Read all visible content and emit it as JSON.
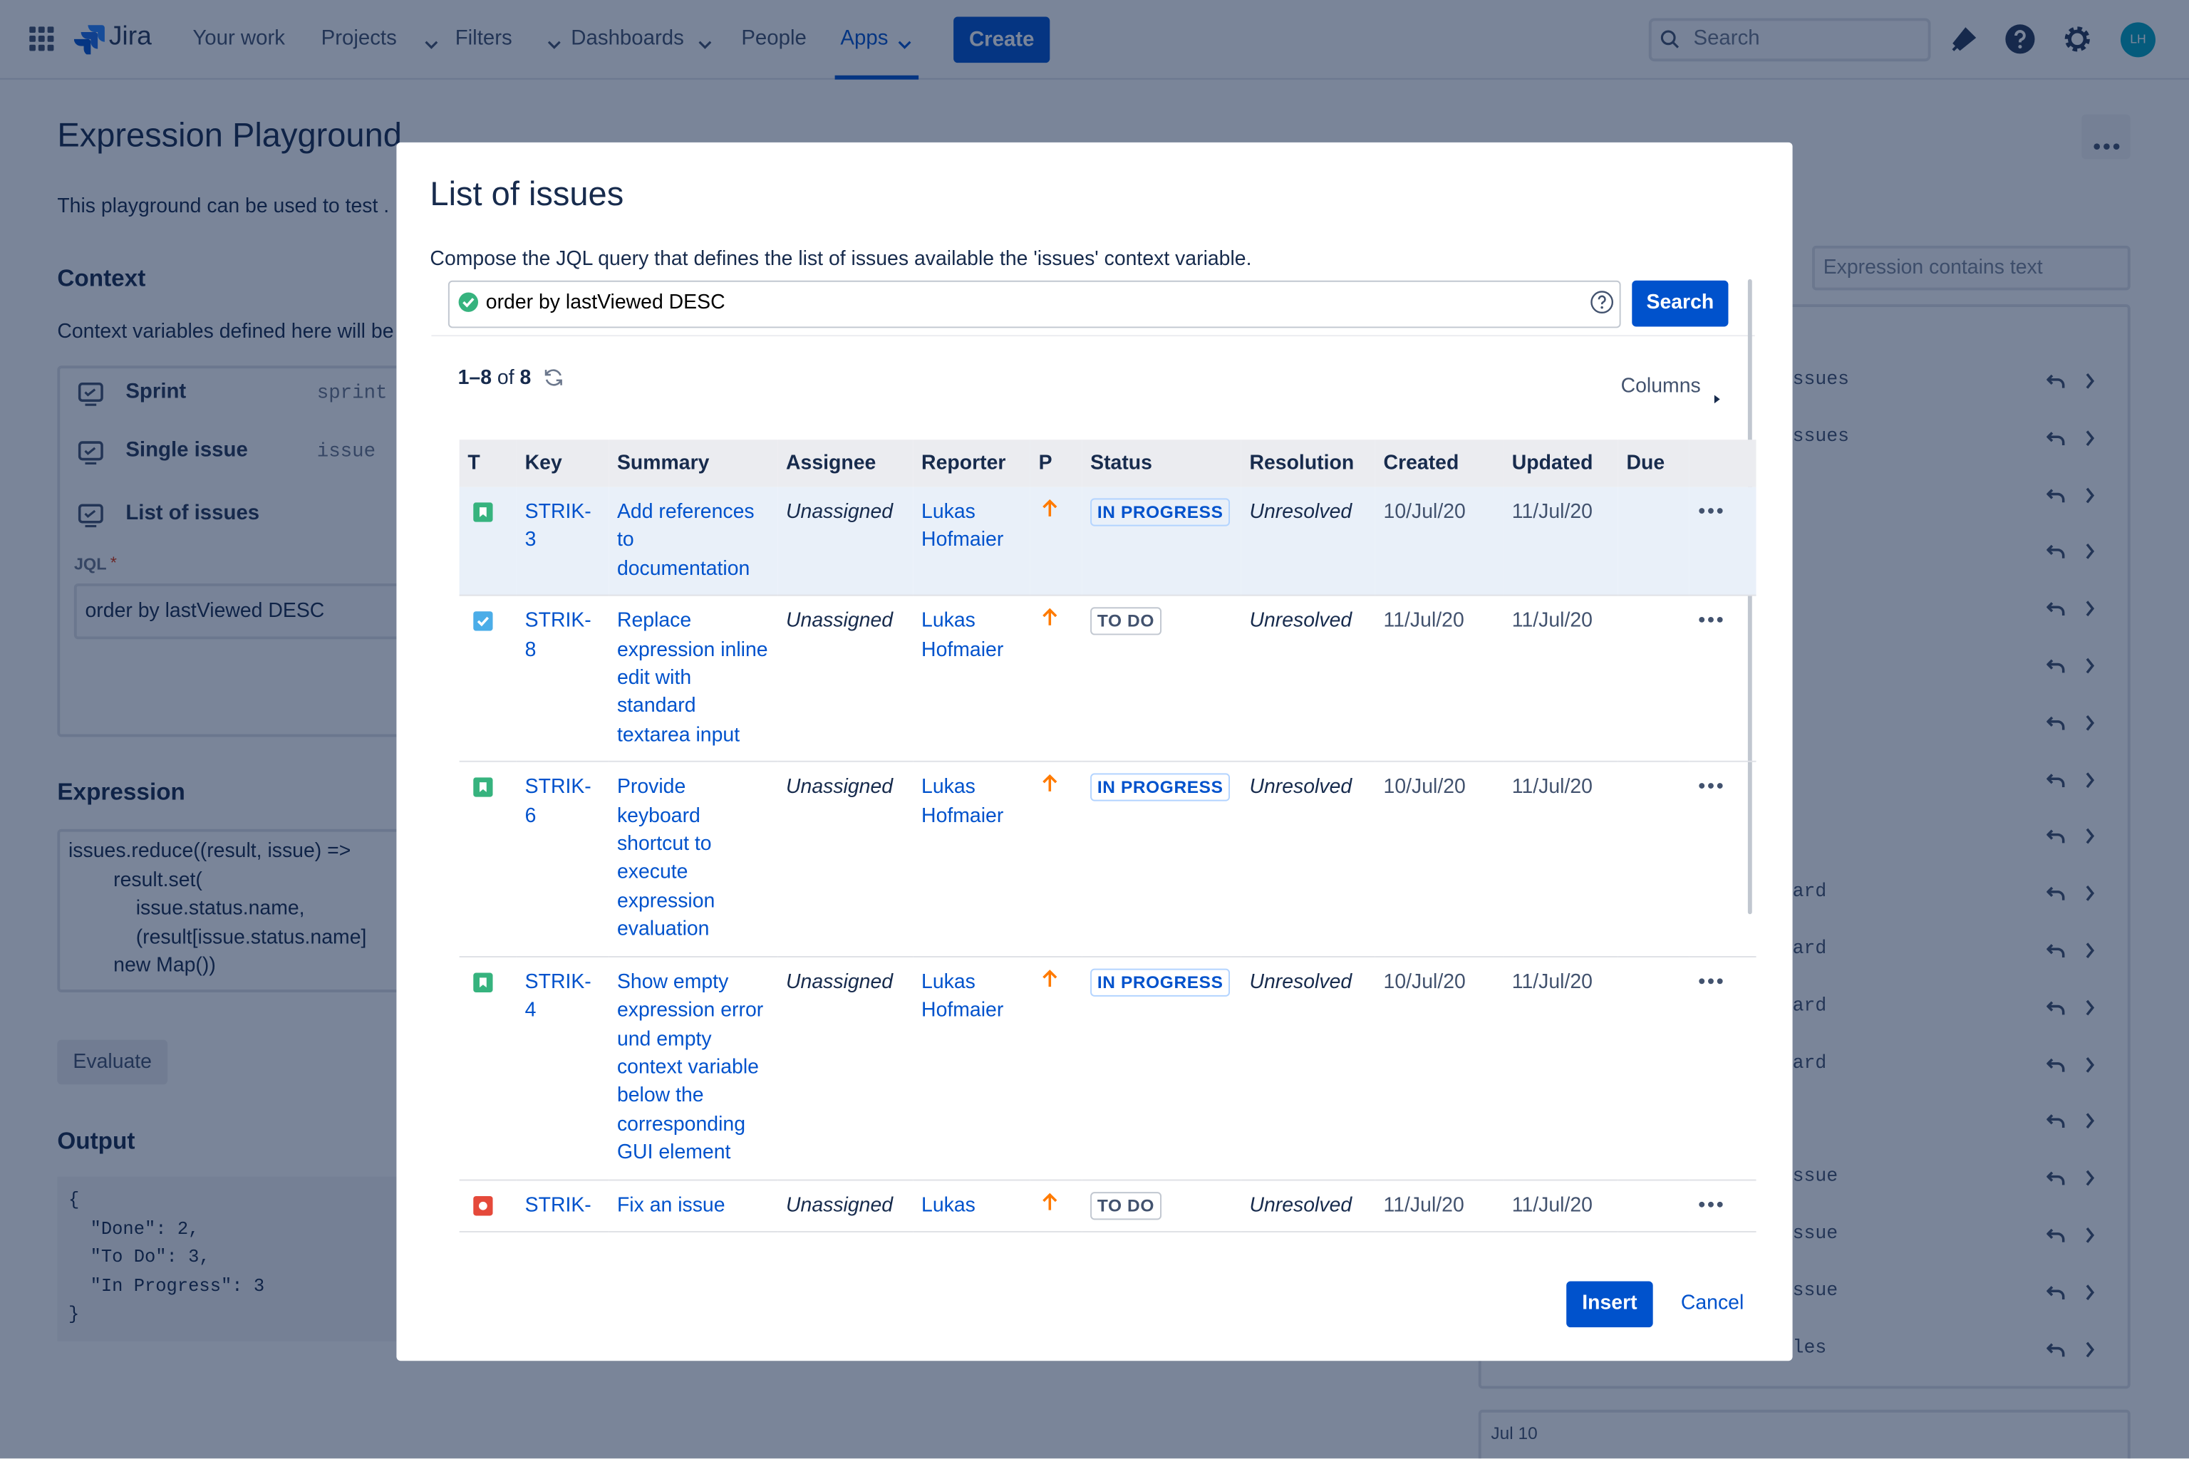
{
  "nav": {
    "product": "Jira",
    "links": [
      "Your work",
      "Projects",
      "Filters",
      "Dashboards",
      "People",
      "Apps"
    ],
    "create": "Create",
    "search": "Search",
    "avatar": "LH"
  },
  "page": {
    "title": "Expression Playground",
    "intro": "This playground can be used to test .",
    "context": {
      "heading": "Context",
      "intro": "Context variables defined here will be",
      "variables": [
        {
          "label": "Sprint",
          "name": "sprint"
        },
        {
          "label": "Single issue",
          "name": "issue"
        },
        {
          "label": "List of issues",
          "name": ""
        }
      ],
      "jql_label": "JQL",
      "jql_value": "order by lastViewed DESC"
    },
    "expression": {
      "heading": "Expression",
      "code": [
        "issues.reduce((result, issue) =>",
        "        result.set(",
        "            issue.status.name,",
        "            (result[issue.status.name]",
        "        new Map())"
      ]
    },
    "evaluate": "Evaluate",
    "output": {
      "heading": "Output",
      "lines": [
        "{",
        "  \"Done\": 2,",
        "  \"To Do\": 3,",
        "  \"In Progress\": 3",
        "}"
      ]
    },
    "filter_placeholder": "Expression contains text",
    "history": {
      "rows": [
        "ssues",
        "ssues",
        "",
        "",
        "",
        "",
        "",
        "",
        "",
        "ard",
        "ard",
        "ard",
        "ard",
        "",
        "ssue",
        "ssue",
        "ssue",
        "les"
      ],
      "date": "Jul 10"
    }
  },
  "modal": {
    "title": "List of issues",
    "description": "Compose the JQL query that defines the list of issues available the 'issues' context variable.",
    "jql": "order by lastViewed DESC",
    "search": "Search",
    "count": {
      "range": "1–8",
      "of": "of",
      "total": "8"
    },
    "columns_button": "Columns",
    "table": {
      "headers": [
        "T",
        "Key",
        "Summary",
        "Assignee",
        "Reporter",
        "P",
        "Status",
        "Resolution",
        "Created",
        "Updated",
        "Due"
      ],
      "rows": [
        {
          "type": "story",
          "key": "STRIK-3",
          "summary": "Add references to documentation",
          "assignee": "Unassigned",
          "reporter": "Lukas Hofmaier",
          "status": "IN PROGRESS",
          "resolution": "Unresolved",
          "created": "10/Jul/20",
          "updated": "11/Jul/20"
        },
        {
          "type": "task",
          "key": "STRIK-8",
          "summary": "Replace expression inline edit with standard textarea input",
          "assignee": "Unassigned",
          "reporter": "Lukas Hofmaier",
          "status": "TO DO",
          "resolution": "Unresolved",
          "created": "11/Jul/20",
          "updated": "11/Jul/20"
        },
        {
          "type": "story",
          "key": "STRIK-6",
          "summary": "Provide keyboard shortcut to execute expression evaluation",
          "assignee": "Unassigned",
          "reporter": "Lukas Hofmaier",
          "status": "IN PROGRESS",
          "resolution": "Unresolved",
          "created": "10/Jul/20",
          "updated": "11/Jul/20"
        },
        {
          "type": "story",
          "key": "STRIK-4",
          "summary": "Show empty expression error und empty context variable below the corresponding GUI element",
          "assignee": "Unassigned",
          "reporter": "Lukas Hofmaier",
          "status": "IN PROGRESS",
          "resolution": "Unresolved",
          "created": "10/Jul/20",
          "updated": "11/Jul/20"
        },
        {
          "type": "bug",
          "key": "STRIK-",
          "summary": "Fix an issue",
          "assignee": "Unassigned",
          "reporter": "Lukas",
          "status": "TO DO",
          "resolution": "Unresolved",
          "created": "11/Jul/20",
          "updated": "11/Jul/20"
        }
      ]
    },
    "insert": "Insert",
    "cancel": "Cancel"
  }
}
